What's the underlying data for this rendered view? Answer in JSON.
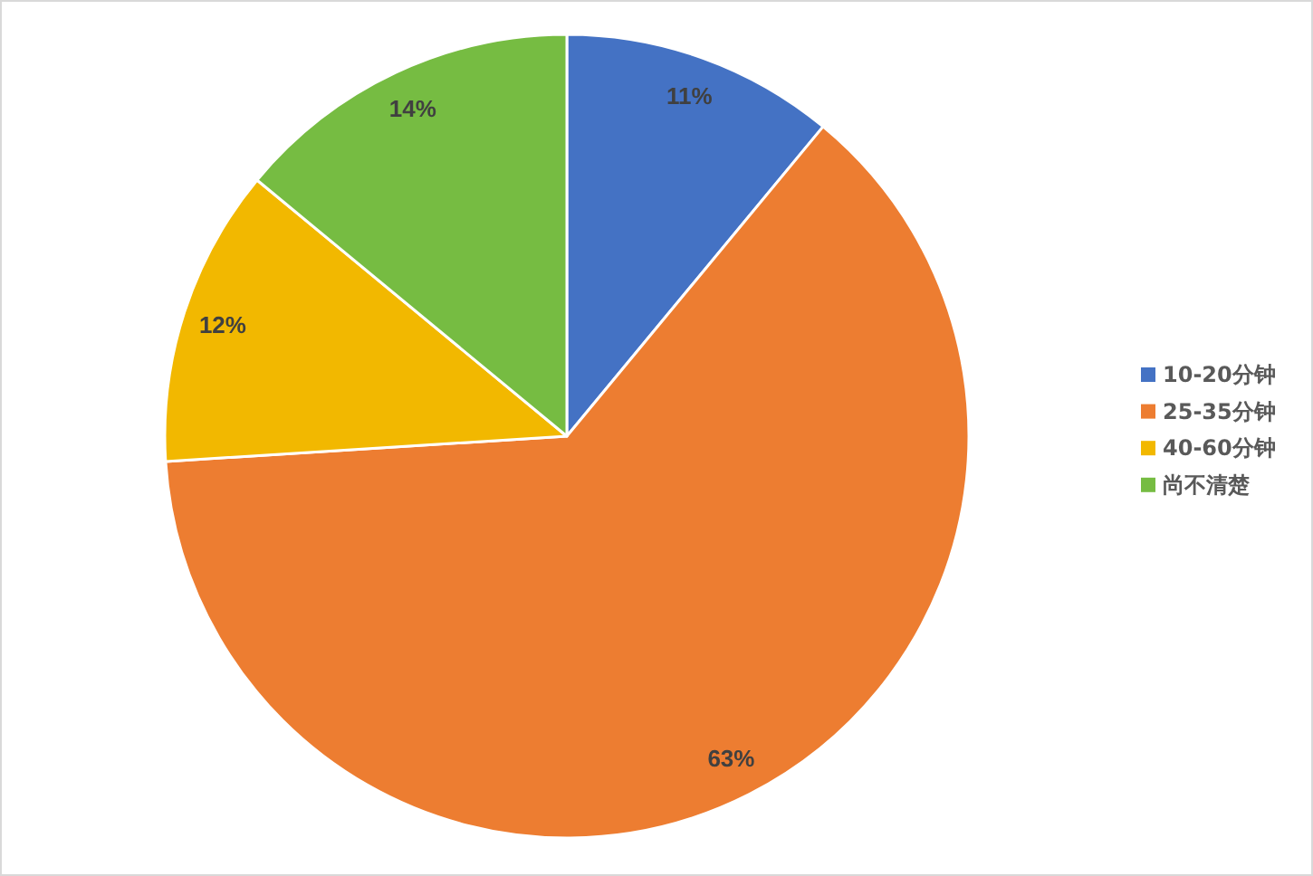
{
  "chart_data": {
    "type": "pie",
    "categories": [
      "10-20分钟",
      "25-35分钟",
      "40-60分钟",
      "尚不清楚"
    ],
    "values": [
      11,
      63,
      12,
      14
    ],
    "value_labels": [
      "11%",
      "63%",
      "12%",
      "14%"
    ],
    "colors": [
      "#4472c4",
      "#ed7d31",
      "#f2b800",
      "#76bc42"
    ],
    "legend": "right"
  }
}
